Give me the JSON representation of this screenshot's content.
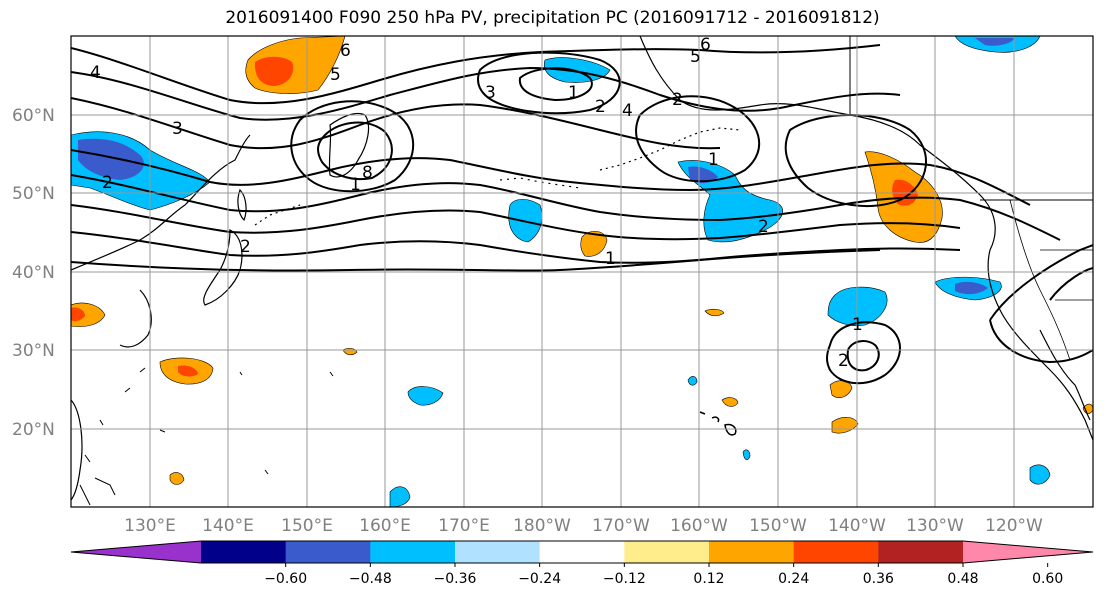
{
  "title": "2016091400 F090 250 hPa PV, precipitation PC (2016091712 - 2016091812)",
  "lat_labels": [
    "60°N",
    "50°N",
    "40°N",
    "30°N",
    "20°N"
  ],
  "lon_labels": [
    "130°E",
    "140°E",
    "150°E",
    "160°E",
    "170°E",
    "180°W",
    "170°W",
    "160°W",
    "150°W",
    "140°W",
    "130°W",
    "120°W"
  ],
  "colorbar": {
    "colors": [
      "#9932cc",
      "#00008b",
      "#3a5bcb",
      "#00bfff",
      "#b0e2ff",
      "#ffffff",
      "#ffec8b",
      "#ffa500",
      "#ff4500",
      "#b22222",
      "#ff88aa"
    ],
    "tick_labels": [
      "−0.60",
      "−0.48",
      "−0.36",
      "−0.24",
      "−0.12",
      "0.12",
      "0.24",
      "0.36",
      "0.48",
      "0.60"
    ]
  },
  "contour_labels": [
    "6",
    "5",
    "4",
    "3",
    "2",
    "1",
    "8",
    "2",
    "4",
    "2",
    "1",
    "3",
    "1",
    "2",
    "5",
    "6",
    "2",
    "1",
    "2",
    "1"
  ],
  "colors": {
    "grid": "#999999",
    "contour": "#000000",
    "coast": "#000000"
  }
}
